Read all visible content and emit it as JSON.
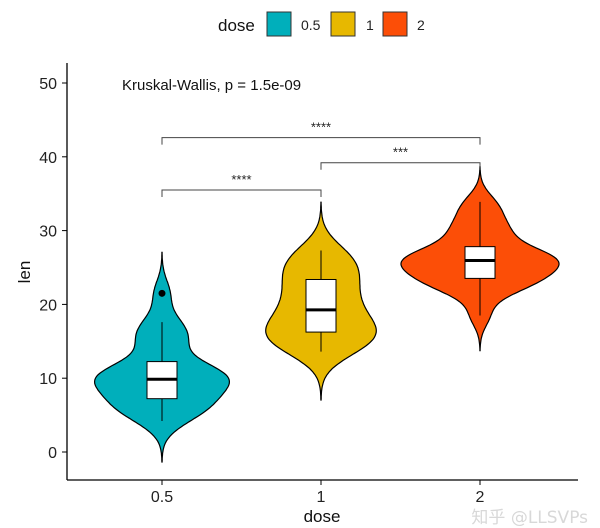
{
  "chart_data": {
    "type": "violin",
    "xlabel": "dose",
    "ylabel": "len",
    "categories": [
      "0.5",
      "1",
      "2"
    ],
    "ylim": [
      -4,
      52
    ],
    "yticks": [
      0,
      10,
      20,
      30,
      40,
      50
    ],
    "legend": {
      "title": "dose",
      "position": "top",
      "entries": [
        "0.5",
        "1",
        "2"
      ]
    },
    "colors": [
      "#00AFBB",
      "#E7B800",
      "#FC4E07"
    ],
    "annotation": "Kruskal-Wallis, p = 1.5e-09",
    "series": [
      {
        "name": "0.5",
        "values": [
          4.2,
          11.5,
          7.3,
          5.8,
          6.4,
          10,
          11.2,
          11.2,
          5.2,
          7,
          15.2,
          21.5,
          17.6,
          9.7,
          14.5,
          10,
          8.2,
          9.4,
          16.5,
          9.7
        ],
        "box": {
          "whisker_low": 4.2,
          "q1": 7.225,
          "median": 9.85,
          "q3": 12.25,
          "whisker_high": 17.6,
          "outliers": [
            21.5
          ]
        }
      },
      {
        "name": "1",
        "values": [
          16.5,
          16.5,
          15.2,
          17.3,
          22.5,
          17.3,
          13.6,
          14.5,
          18.8,
          15.5,
          19.7,
          23.3,
          23.6,
          26.4,
          20,
          25.2,
          25.8,
          21.2,
          14.5,
          27.3
        ],
        "box": {
          "whisker_low": 13.6,
          "q1": 16.25,
          "median": 19.25,
          "q3": 23.375,
          "whisker_high": 27.3,
          "outliers": []
        }
      },
      {
        "name": "2",
        "values": [
          23.6,
          18.5,
          33.9,
          25.5,
          26.4,
          32.5,
          26.7,
          21.5,
          23.3,
          29.5,
          25.5,
          26.4,
          22.4,
          24.5,
          24.8,
          30.9,
          26.4,
          27.3,
          29.4,
          23.0
        ],
        "box": {
          "whisker_low": 18.5,
          "q1": 23.525,
          "median": 25.95,
          "q3": 27.825,
          "whisker_high": 33.9,
          "outliers": []
        }
      }
    ],
    "comparisons": [
      {
        "from": "0.5",
        "to": "1",
        "y": 35.5,
        "label": "****"
      },
      {
        "from": "1",
        "to": "2",
        "y": 39.2,
        "label": "***"
      },
      {
        "from": "0.5",
        "to": "2",
        "y": 42.6,
        "label": "****"
      }
    ]
  },
  "watermark": "知乎 @LLSVPs"
}
